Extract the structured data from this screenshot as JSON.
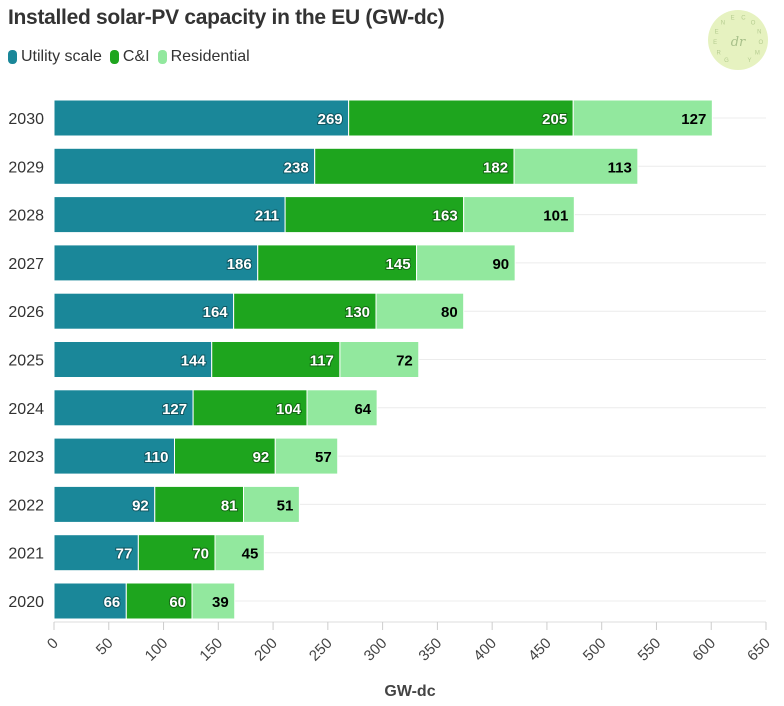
{
  "chart_data": {
    "type": "bar",
    "orientation": "horizontal",
    "stacked": true,
    "title": "Installed solar-PV capacity in the EU (GW-dc)",
    "xlabel": "GW-dc",
    "ylabel": "",
    "xlim": [
      0,
      650
    ],
    "xticks": [
      0,
      50,
      100,
      150,
      200,
      250,
      300,
      350,
      400,
      450,
      500,
      550,
      600,
      650
    ],
    "grid": true,
    "legend_position": "top-left",
    "categories": [
      "2030",
      "2029",
      "2028",
      "2027",
      "2026",
      "2025",
      "2024",
      "2023",
      "2022",
      "2021",
      "2020"
    ],
    "series": [
      {
        "name": "Utility scale",
        "color": "#1a8799",
        "label_color": "#ffffff",
        "values": [
          269,
          238,
          211,
          186,
          164,
          144,
          127,
          110,
          92,
          77,
          66
        ]
      },
      {
        "name": "C&I",
        "color": "#1ea51e",
        "label_color": "#ffffff",
        "values": [
          205,
          182,
          163,
          145,
          130,
          117,
          104,
          92,
          81,
          70,
          60
        ]
      },
      {
        "name": "Residential",
        "color": "#92e89e",
        "label_color": "#000000",
        "values": [
          127,
          113,
          101,
          90,
          80,
          72,
          64,
          57,
          51,
          45,
          39
        ]
      }
    ]
  },
  "logo": {
    "text": "GREEN ECONOMY",
    "color": "#e6f2c0"
  }
}
